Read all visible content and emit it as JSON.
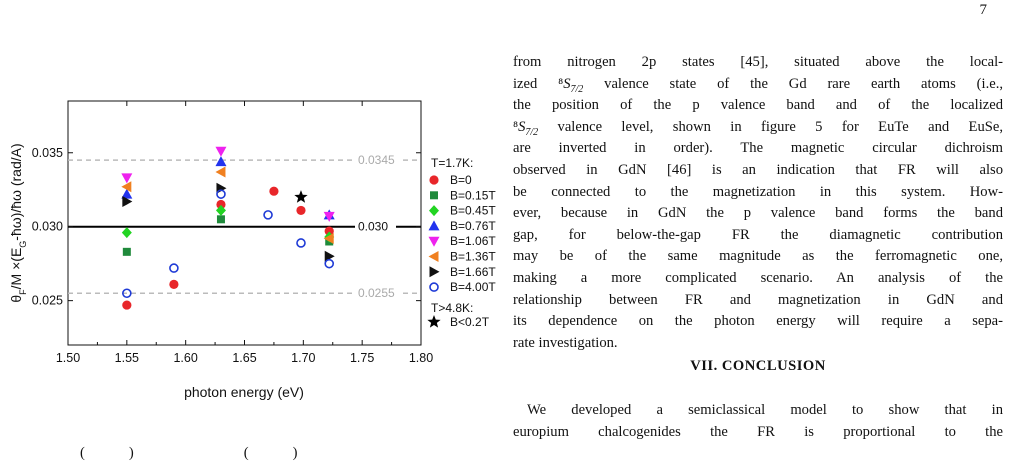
{
  "page": {
    "number": "7"
  },
  "figure": {
    "caption_fragment": [
      "(",
      ")",
      "(",
      ")"
    ],
    "chart_data": {
      "type": "scatter",
      "xlabel": "photon energy (eV)",
      "ylabel": "θF/M ×(EG-ħω)/ħω (rad/A)",
      "ylabel_parts": {
        "theta": "θ",
        "sub_F": "F",
        "mid": "/M ×(E",
        "sub_G": "G",
        "end": "-ħω)/ħω (rad/A)"
      },
      "xlim": [
        1.5,
        1.8
      ],
      "ylim": [
        0.022,
        0.0385
      ],
      "xticks": [
        "1.50",
        "1.55",
        "1.60",
        "1.65",
        "1.70",
        "1.75",
        "1.80"
      ],
      "yticks": [
        "0.025",
        "0.030",
        "0.035"
      ],
      "xtick_values": [
        1.5,
        1.55,
        1.6,
        1.65,
        1.7,
        1.75,
        1.8
      ],
      "ytick_values": [
        0.025,
        0.03,
        0.035
      ],
      "grid": false,
      "reference_lines": [
        {
          "y": 0.0345,
          "label": "0.0345",
          "style": "dashed",
          "color": "#bbbbbb"
        },
        {
          "y": 0.03,
          "label": "0.030",
          "style": "solid",
          "color": "#000000"
        },
        {
          "y": 0.0255,
          "label": "0.0255",
          "style": "dashed",
          "color": "#bbbbbb"
        }
      ],
      "legend_position": "right",
      "legend_header_1": "T=1.7K:",
      "legend_header_2": "T>4.8K:",
      "series": [
        {
          "name": "B=0",
          "marker": "circle",
          "color": "#e8262a",
          "points": [
            [
              1.55,
              0.0247
            ],
            [
              1.59,
              0.0261
            ],
            [
              1.63,
              0.0315
            ],
            [
              1.675,
              0.0324
            ],
            [
              1.698,
              0.0311
            ],
            [
              1.722,
              0.0297
            ]
          ]
        },
        {
          "name": "B=0.15T",
          "marker": "square",
          "color": "#1f8a3b",
          "points": [
            [
              1.55,
              0.0283
            ],
            [
              1.63,
              0.0305
            ],
            [
              1.722,
              0.029
            ]
          ]
        },
        {
          "name": "B=0.45T",
          "marker": "diamond",
          "color": "#22d422",
          "points": [
            [
              1.55,
              0.0296
            ],
            [
              1.63,
              0.0311
            ],
            [
              1.722,
              0.0293
            ]
          ]
        },
        {
          "name": "B=0.76T",
          "marker": "triangle-up",
          "color": "#2233ee",
          "points": [
            [
              1.55,
              0.0322
            ],
            [
              1.63,
              0.0344
            ],
            [
              1.722,
              0.0308
            ]
          ]
        },
        {
          "name": "B=1.06T",
          "marker": "triangle-down",
          "color": "#ee22ee",
          "points": [
            [
              1.55,
              0.0333
            ],
            [
              1.63,
              0.0351
            ],
            [
              1.722,
              0.0307
            ]
          ]
        },
        {
          "name": "B=1.36T",
          "marker": "triangle-left",
          "color": "#f08020",
          "points": [
            [
              1.55,
              0.0327
            ],
            [
              1.63,
              0.0337
            ],
            [
              1.722,
              0.0292
            ]
          ]
        },
        {
          "name": "B=1.66T",
          "marker": "triangle-right",
          "color": "#111111",
          "points": [
            [
              1.55,
              0.0317
            ],
            [
              1.63,
              0.0326
            ],
            [
              1.722,
              0.028
            ]
          ]
        },
        {
          "name": "B=4.00T",
          "marker": "open-circle",
          "color": "#1e3ad6",
          "points": [
            [
              1.55,
              0.0255
            ],
            [
              1.59,
              0.0272
            ],
            [
              1.63,
              0.0322
            ],
            [
              1.67,
              0.0308
            ],
            [
              1.698,
              0.0289
            ],
            [
              1.722,
              0.0275
            ]
          ]
        },
        {
          "name": "B<0.2T",
          "marker": "star",
          "color": "#000000",
          "points": [
            [
              1.698,
              0.032
            ]
          ]
        }
      ]
    }
  },
  "text": {
    "p1_lines": [
      "from nitrogen 2p states [45], situated above the local-",
      "ized ⁸S7/2 valence state of the Gd rare earth atoms (i.e.,",
      "the position of the p valence band and of the localized",
      "⁸S7/2 valence level, shown in figure 5 for EuTe and EuSe,",
      "are inverted in order). The magnetic circular dichroism",
      "observed in GdN [46] is an indication that FR will also",
      "be connected to the magnetization in this system. How-",
      "ever, because in GdN the p valence band forms the band",
      "gap, for below-the-gap FR the diamagnetic contribution",
      "may be of the same magnitude as the ferromagnetic one,",
      "making a more complicated scenario. An analysis of the",
      "relationship between FR and magnetization in GdN and",
      "its dependence on the photon energy will require a sepa-",
      "rate investigation."
    ],
    "heading": "VII.   CONCLUSION",
    "p2_lines": [
      "We developed a semiclassical model to show that in",
      "europium chalcogenides the FR is proportional to the"
    ]
  }
}
